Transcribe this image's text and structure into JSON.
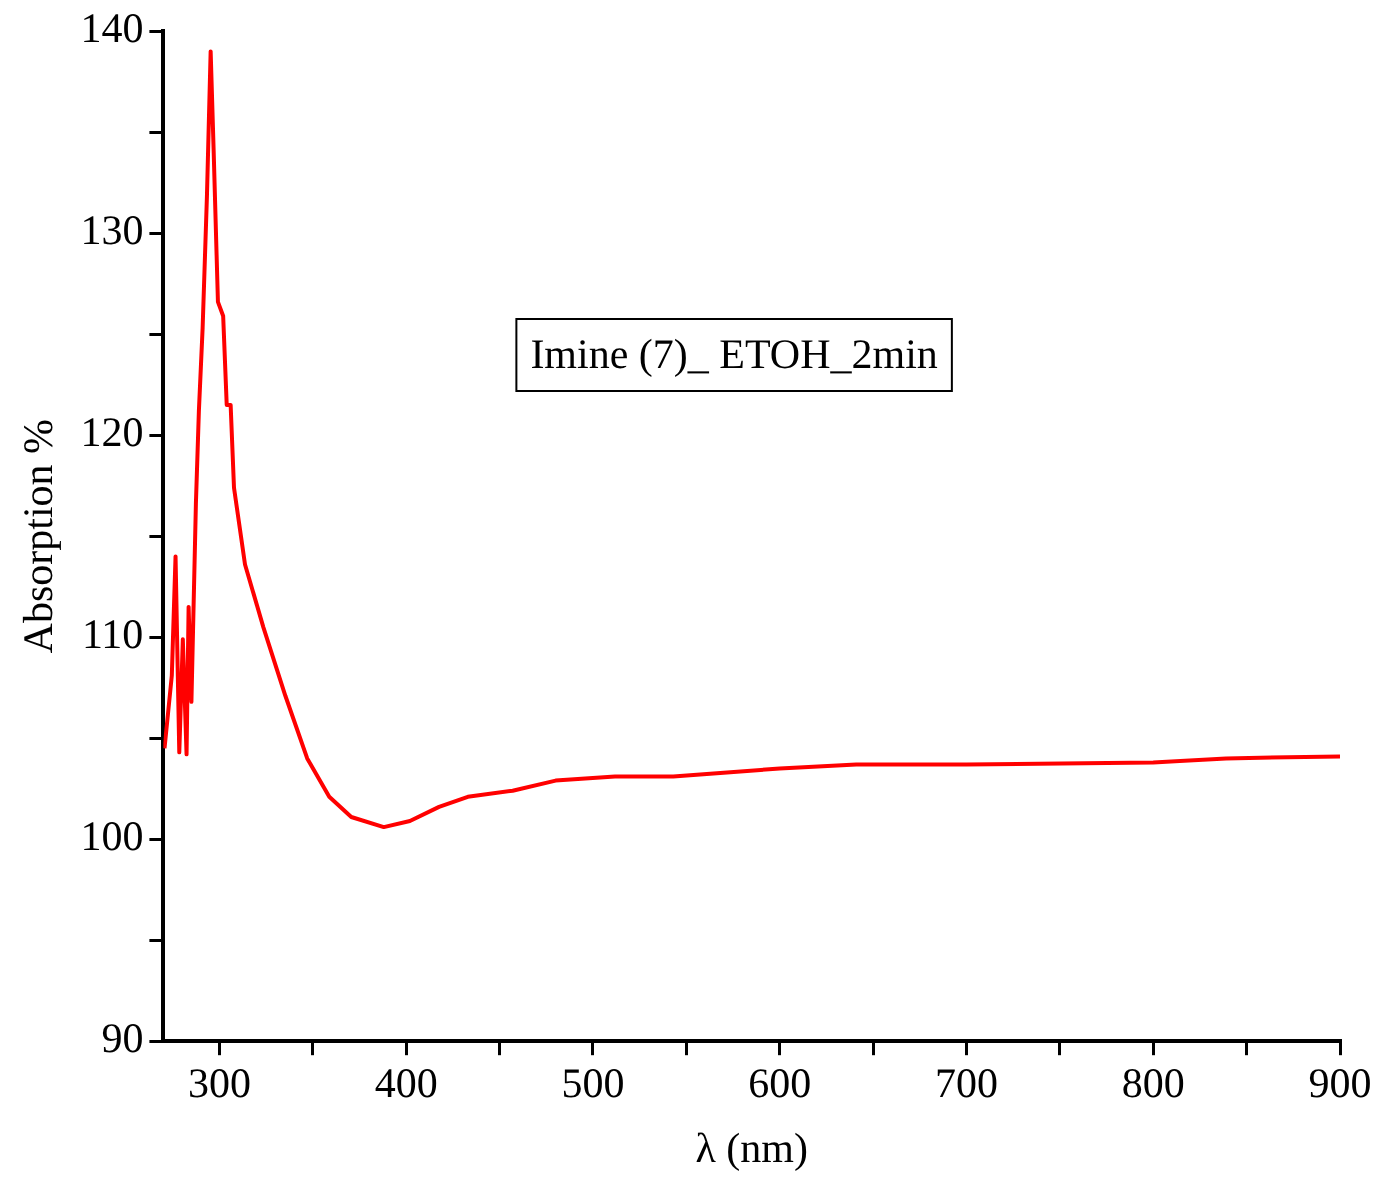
{
  "chart_data": {
    "type": "line",
    "xlabel": "λ (nm)",
    "ylabel": "Absorption %",
    "annotations": [
      "Imine (7)_ ETOH_2min"
    ],
    "x": [
      270.6,
      274.5,
      276.5,
      278.5,
      280.4,
      282.4,
      283.5,
      285,
      287.4,
      289,
      291,
      293.3,
      295.3,
      296.9,
      299.2,
      302,
      303.9,
      306,
      307.8,
      313.7,
      323.5,
      335.3,
      347,
      358.8,
      370.6,
      388,
      402,
      417.6,
      433,
      457,
      480,
      511.8,
      543,
      600,
      641,
      700,
      800,
      839,
      900
    ],
    "series": [
      {
        "color": "#ff0000",
        "values": [
          104.5,
          108.1,
          114.0,
          104.3,
          109.9,
          104.2,
          111.5,
          106.8,
          116.6,
          121.2,
          125.3,
          131.8,
          139.0,
          134.1,
          126.6,
          125.9,
          121.5,
          121.5,
          117.4,
          113.6,
          110.5,
          107.1,
          104.0,
          102.1,
          101.1,
          100.6,
          100.9,
          101.6,
          102.1,
          102.4,
          102.9,
          103.1,
          103.1,
          103.5,
          103.7,
          103.7,
          103.8,
          104.0,
          104.1
        ]
      }
    ],
    "xlim": [
      270,
      900
    ],
    "xticks": [
      300,
      {
        "value": 350,
        "label": null
      },
      400,
      {
        "value": 450,
        "label": null
      },
      500,
      {
        "value": 550,
        "label": null
      },
      600,
      {
        "value": 650,
        "label": null
      },
      700,
      {
        "value": 750,
        "label": null
      },
      800,
      {
        "value": 850,
        "label": null
      },
      900
    ],
    "ylim": [
      90,
      140
    ],
    "yticks": [
      90,
      {
        "value": 95,
        "label": null
      },
      100,
      {
        "value": 105,
        "label": null
      },
      110,
      {
        "value": 115,
        "label": null
      },
      120,
      {
        "value": 125,
        "label": null
      },
      130,
      {
        "value": 135,
        "label": null
      },
      140
    ],
    "grid": false,
    "legend": false,
    "marker": "none",
    "line_style": "solid"
  }
}
